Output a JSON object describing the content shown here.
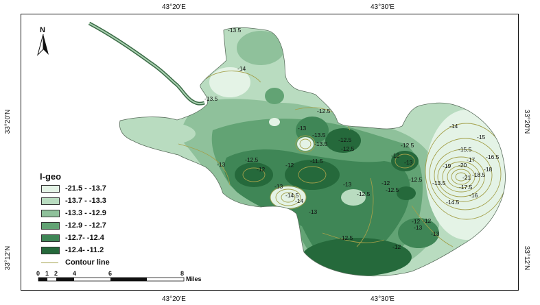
{
  "coords": {
    "top_left": "43°20'E",
    "top_right": "43°30'E",
    "bottom_left": "43°20'E",
    "bottom_right": "43°30'E",
    "left_upper": "33°20'N",
    "left_lower": "33°12'N",
    "right_upper": "33°20'N",
    "right_lower": "33°12'N"
  },
  "north_arrow": {
    "label": "N",
    "icon": "north-arrow-icon"
  },
  "legend": {
    "title": "I-geo",
    "classes": [
      {
        "label": "-21.5 - -13.7",
        "color": "#e4f3e6"
      },
      {
        "label": "-13.7 - -13.3",
        "color": "#b9dcc0"
      },
      {
        "label": "-13.3 - -12.9",
        "color": "#8fc19b"
      },
      {
        "label": "-12.9 - -12.7",
        "color": "#62a374"
      },
      {
        "label": "-12.7- -12.4",
        "color": "#3f8656"
      },
      {
        "label": "-12.4- -11.2",
        "color": "#25693b"
      }
    ],
    "contour_label": "Contour line",
    "contour_color": "#a3a04a"
  },
  "scale_bar": {
    "ticks": [
      "0",
      "1",
      "2",
      "4",
      "6",
      "8"
    ],
    "unit": "Miles"
  },
  "contour_labels": [
    "-13.5",
    "-14",
    "-13.5",
    "-12.5",
    "-13",
    "-13.5",
    "-13.5",
    "-12.5",
    "-12.5",
    "-13",
    "-12.5",
    "-12",
    "-11.5",
    "-12",
    "-12",
    "-13",
    "-13",
    "-14",
    "-14.5",
    "-12.5",
    "-13",
    "-12.5",
    "-12.5",
    "-12",
    "-12.5",
    "-13.5",
    "-12",
    "-13",
    "-14",
    "-15",
    "-15.5",
    "-16.5",
    "-17",
    "-18",
    "-19",
    "-20",
    "-21",
    "-18.5",
    "-17.5",
    "-16",
    "-14.5",
    "-13",
    "-12",
    "-12.5",
    "-12",
    "-13"
  ]
}
